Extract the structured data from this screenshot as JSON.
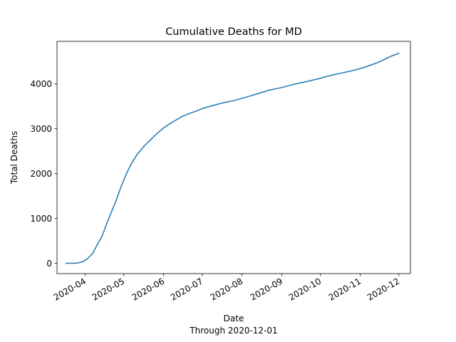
{
  "chart_data": {
    "type": "line",
    "title": "Cumulative Deaths for MD",
    "xlabel": "Date",
    "xlabel_sub": "Through 2020-12-01",
    "ylabel": "Total Deaths",
    "x_type": "date",
    "xlim": [
      "2020-03-10",
      "2020-12-10"
    ],
    "ylim": [
      -230,
      4950
    ],
    "grid": false,
    "legend": "none",
    "x_ticks": [
      "2020-04",
      "2020-05",
      "2020-06",
      "2020-07",
      "2020-08",
      "2020-09",
      "2020-10",
      "2020-11",
      "2020-12"
    ],
    "x_tick_dates": [
      "2020-04-01",
      "2020-05-01",
      "2020-06-01",
      "2020-07-01",
      "2020-08-01",
      "2020-09-01",
      "2020-10-01",
      "2020-11-01",
      "2020-12-01"
    ],
    "y_ticks": [
      0,
      1000,
      2000,
      3000,
      4000
    ],
    "series": [
      {
        "color": "#1f77b4",
        "x": [
          "2020-03-17",
          "2020-03-24",
          "2020-03-27",
          "2020-03-31",
          "2020-04-03",
          "2020-04-07",
          "2020-04-10",
          "2020-04-14",
          "2020-04-17",
          "2020-04-21",
          "2020-04-25",
          "2020-04-29",
          "2020-05-03",
          "2020-05-07",
          "2020-05-12",
          "2020-05-17",
          "2020-05-22",
          "2020-05-27",
          "2020-06-01",
          "2020-06-04",
          "2020-06-08",
          "2020-06-11",
          "2020-06-15",
          "2020-06-20",
          "2020-06-25",
          "2020-07-01",
          "2020-07-07",
          "2020-07-12",
          "2020-07-19",
          "2020-07-26",
          "2020-08-01",
          "2020-08-06",
          "2020-08-14",
          "2020-08-22",
          "2020-09-01",
          "2020-09-10",
          "2020-09-20",
          "2020-09-30",
          "2020-10-09",
          "2020-10-17",
          "2020-10-25",
          "2020-11-02",
          "2020-11-09",
          "2020-11-15",
          "2020-11-20",
          "2020-11-25",
          "2020-12-01"
        ],
        "y": [
          0,
          0,
          10,
          50,
          110,
          230,
          400,
          600,
          830,
          1120,
          1400,
          1720,
          2000,
          2230,
          2450,
          2620,
          2760,
          2900,
          3020,
          3080,
          3150,
          3200,
          3270,
          3330,
          3380,
          3450,
          3500,
          3540,
          3590,
          3630,
          3680,
          3720,
          3790,
          3860,
          3920,
          3990,
          4050,
          4120,
          4190,
          4240,
          4290,
          4350,
          4420,
          4480,
          4550,
          4620,
          4680
        ]
      }
    ]
  }
}
